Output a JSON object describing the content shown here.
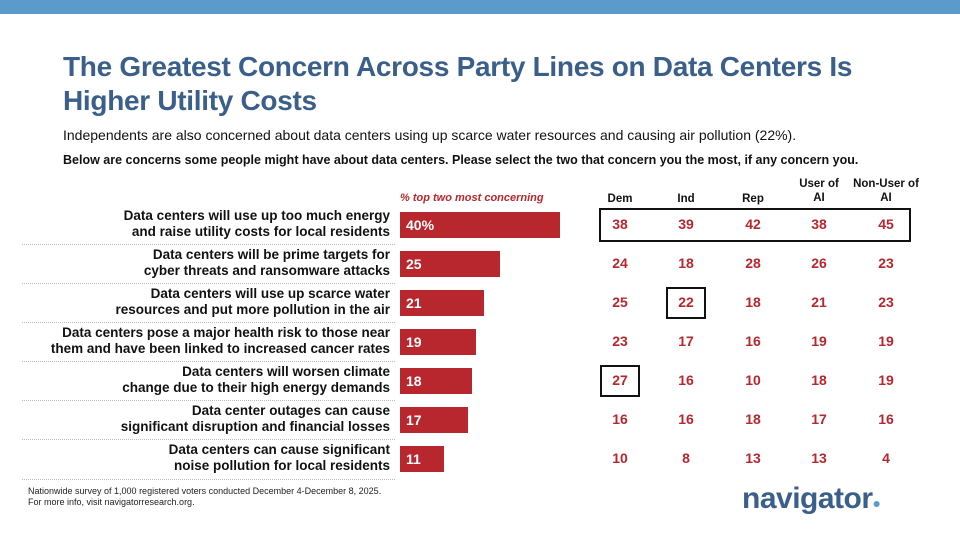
{
  "title": "The Greatest Concern Across Party Lines on Data Centers Is Higher Utility Costs",
  "subtitle": "Independents are also concerned about data centers using up scarce water resources and causing air pollution (22%).",
  "question": "Below are concerns some people might have about data centers. Please select the two that concern you the most, if any concern you.",
  "footnote": [
    "Nationwide survey of 1,000 registered voters conducted December 4-December 8, 2025.",
    "For more info, visit navigatorresearch.org."
  ],
  "logo": "navigator",
  "colors": {
    "bar": "#b8262e",
    "title": "#3a5f8a",
    "topbar": "#5b9bcb"
  },
  "chart_data": {
    "type": "bar",
    "orientation": "horizontal",
    "bar_header": "% top two most concerning",
    "categories": [
      [
        "Data centers will use up too much energy",
        "and raise utility costs for local residents"
      ],
      [
        "Data centers will be prime targets for",
        "cyber threats and ransomware attacks"
      ],
      [
        "Data centers will use up scarce water",
        "resources and put more pollution in the air"
      ],
      [
        "Data centers pose a major health risk to those near",
        "them and have been linked to increased cancer rates"
      ],
      [
        "Data centers will worsen climate",
        "change due to their high energy demands"
      ],
      [
        "Data center outages can cause",
        "significant disruption and financial losses"
      ],
      [
        "Data centers can cause significant",
        "noise pollution for local residents"
      ]
    ],
    "values": [
      40,
      25,
      21,
      19,
      18,
      17,
      11
    ],
    "value_labels": [
      "40%",
      "25",
      "21",
      "19",
      "18",
      "17",
      "11"
    ],
    "table": {
      "columns": [
        "Dem",
        "Ind",
        "Rep",
        "User of AI",
        "Non-User of AI"
      ],
      "column_lines": [
        [
          "Dem"
        ],
        [
          "Ind"
        ],
        [
          "Rep"
        ],
        [
          "User of",
          "AI"
        ],
        [
          "Non-User of",
          "AI"
        ]
      ],
      "rows": [
        [
          "38",
          "39",
          "42",
          "38",
          "45"
        ],
        [
          "24",
          "18",
          "28",
          "26",
          "23"
        ],
        [
          "25",
          "22",
          "18",
          "21",
          "23"
        ],
        [
          "23",
          "17",
          "16",
          "19",
          "19"
        ],
        [
          "27",
          "16",
          "10",
          "18",
          "19"
        ],
        [
          "16",
          "16",
          "18",
          "17",
          "16"
        ],
        [
          "10",
          "8",
          "13",
          "13",
          "4"
        ]
      ],
      "highlighted": [
        {
          "row": 0,
          "all": true
        },
        {
          "row": 2,
          "col": 1
        },
        {
          "row": 4,
          "col": 0
        }
      ]
    }
  }
}
